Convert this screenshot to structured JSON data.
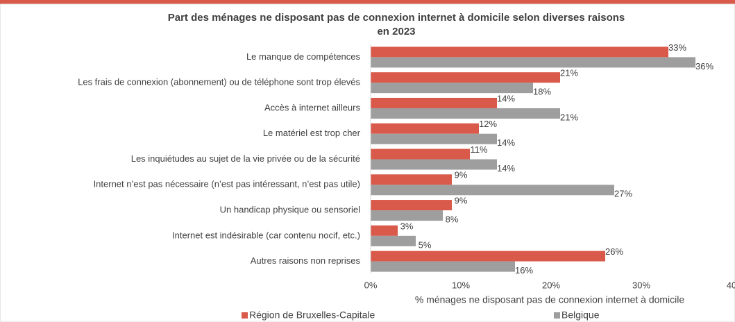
{
  "chart_data": {
    "type": "barh",
    "title": "Part des ménages ne disposant pas de connexion internet à domicile selon diverses raisons",
    "subtitle": "en 2023",
    "x_label": "% ménages ne disposant pas de connexion internet à domicile",
    "categories": [
      "Le manque de compétences",
      "Les frais de connexion (abonnement) ou de téléphone sont trop élevés",
      "Accès à internet ailleurs",
      "Le matériel est trop cher",
      "Les inquiétudes au sujet de la vie privée ou de la sécurité",
      "Internet n’est pas nécessaire (n’est pas intéressant, n’est pas utile)",
      "Un handicap physique ou sensoriel",
      "Internet est indésirable (car contenu nocif, etc.)",
      "Autres raisons non reprises"
    ],
    "series": [
      {
        "name": "Région de Bruxelles-Capitale",
        "color": "#d9594a",
        "values": [
          33,
          21,
          14,
          12,
          11,
          9,
          9,
          3,
          26
        ],
        "value_labels": [
          "33%",
          "21%",
          "14%",
          "12%",
          "11%",
          "9%",
          "9%",
          "3%",
          "26%"
        ]
      },
      {
        "name": "Belgique",
        "color": "#9e9e9e",
        "values": [
          36,
          18,
          21,
          14,
          14,
          27,
          8,
          5,
          16
        ],
        "value_labels": [
          "36%",
          "18%",
          "21%",
          "14%",
          "14%",
          "27%",
          "8%",
          "5%",
          "16%"
        ]
      }
    ],
    "xlim": [
      0,
      40
    ],
    "xticks": [
      {
        "value": 0,
        "label": "0%"
      },
      {
        "value": 10,
        "label": "10%"
      },
      {
        "value": 20,
        "label": "20%"
      },
      {
        "value": 30,
        "label": "30%"
      },
      40
    ],
    "legend": "bottom"
  }
}
